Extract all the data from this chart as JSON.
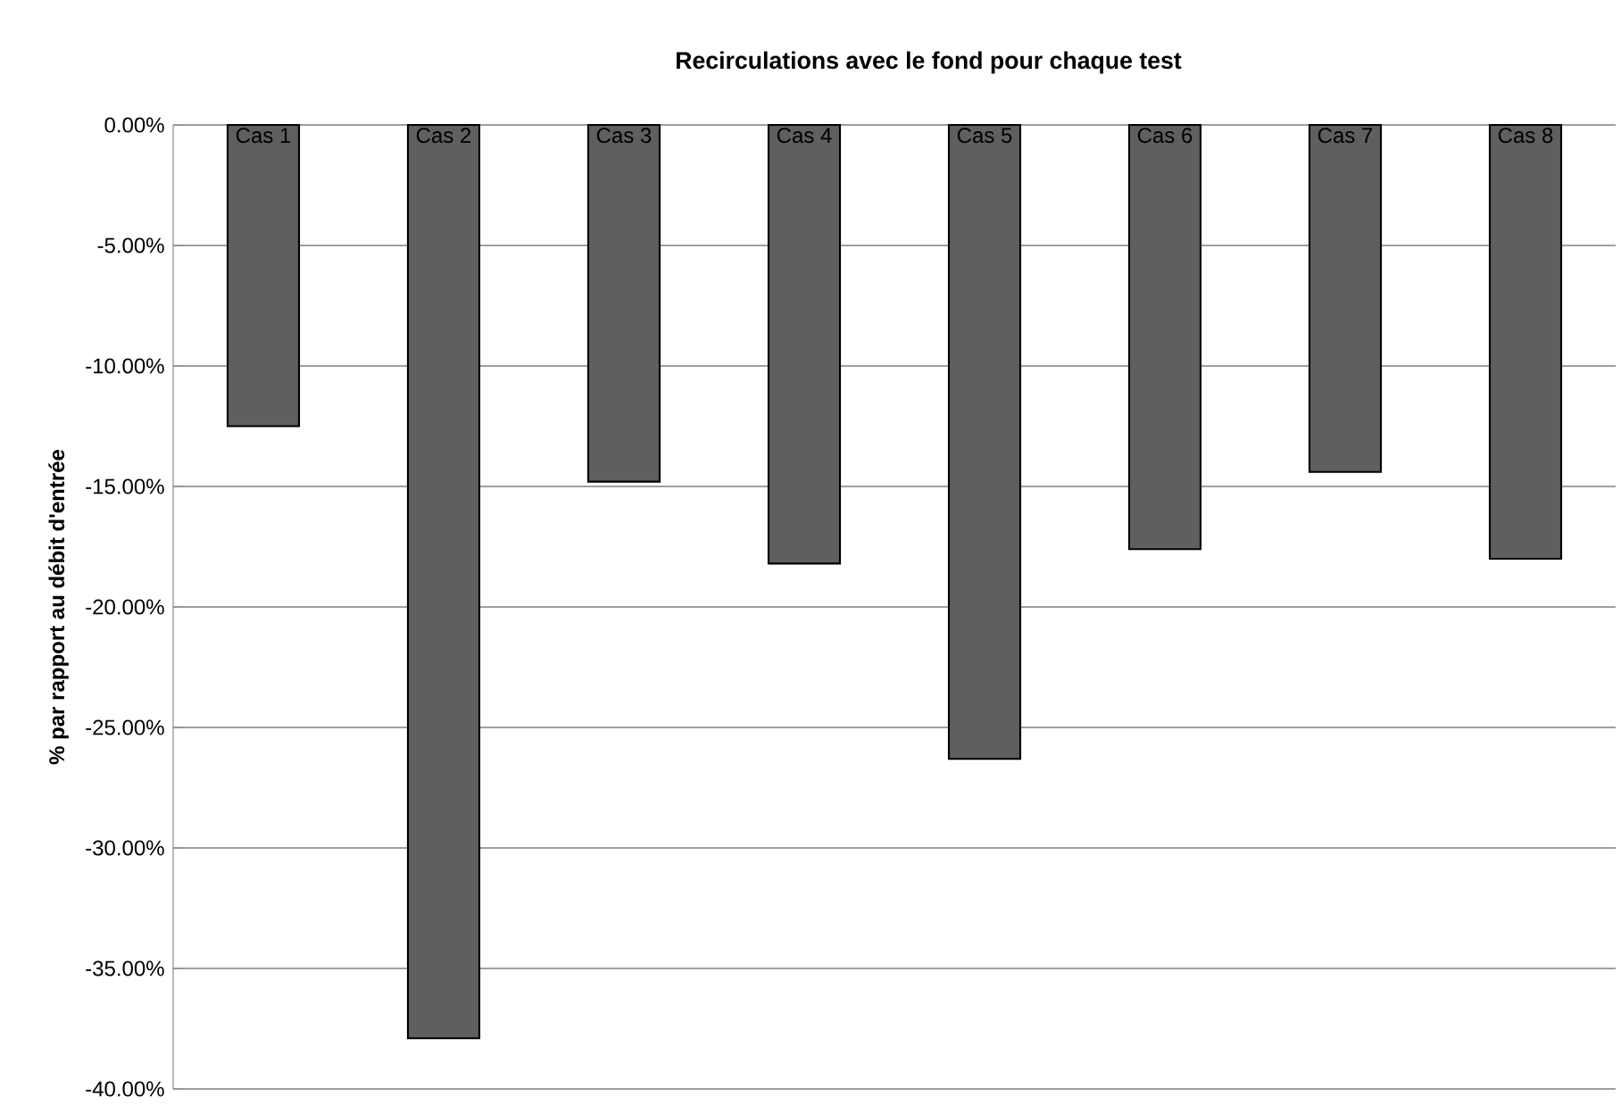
{
  "chart_data": {
    "type": "bar",
    "title": "Recirculations avec le fond pour chaque test",
    "ylabel": "% par rapport au débit d'entrée",
    "categories": [
      "Cas 1",
      "Cas 2",
      "Cas 3",
      "Cas 4",
      "Cas 5",
      "Cas 6",
      "Cas 7",
      "Cas 8"
    ],
    "values": [
      -12.5,
      -37.9,
      -14.8,
      -18.2,
      -26.3,
      -17.6,
      -14.4,
      -18.0
    ],
    "color": "#5f5f5f",
    "ylim": [
      -40,
      0
    ],
    "yticks": [
      {
        "value": 0,
        "label": "0.00%"
      },
      {
        "value": -5,
        "label": "-5.00%"
      },
      {
        "value": -10,
        "label": "-10.00%"
      },
      {
        "value": -15,
        "label": "-15.00%"
      },
      {
        "value": -20,
        "label": "-20.00%"
      },
      {
        "value": -25,
        "label": "-25.00%"
      },
      {
        "value": -30,
        "label": "-30.00%"
      },
      {
        "value": -35,
        "label": "-35.00%"
      },
      {
        "value": -40,
        "label": "-40.00%"
      }
    ],
    "grid": "y"
  }
}
